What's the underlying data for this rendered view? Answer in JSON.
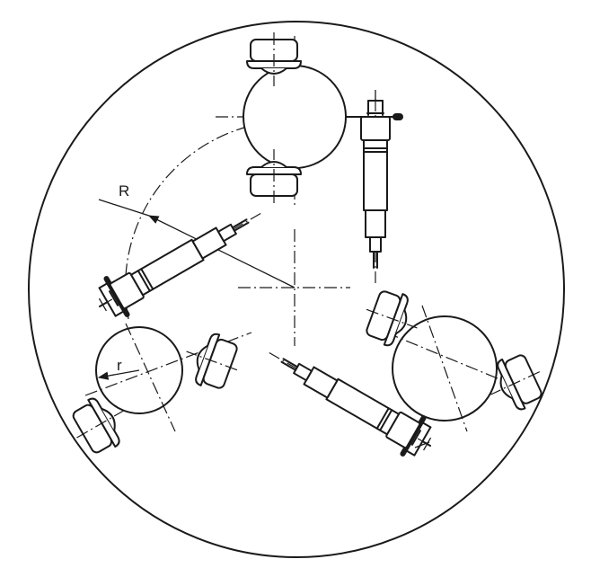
{
  "labels": {
    "big_radius": "R",
    "small_radius": "r"
  },
  "colors": {
    "line": "#1a1a1a",
    "background": "#ffffff"
  }
}
